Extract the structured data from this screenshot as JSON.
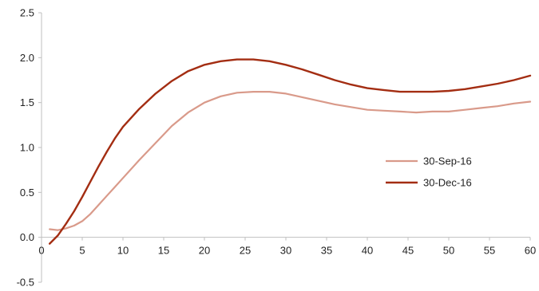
{
  "chart_data": {
    "type": "line",
    "title": "",
    "xlabel": "",
    "ylabel": "",
    "xlim": [
      0,
      60
    ],
    "ylim": [
      -0.5,
      2.5
    ],
    "x_ticks": [
      0,
      5,
      10,
      15,
      20,
      25,
      30,
      35,
      40,
      45,
      50,
      55,
      60
    ],
    "y_ticks": [
      -0.5,
      0.0,
      0.5,
      1.0,
      1.5,
      2.0,
      2.5
    ],
    "x_tick_labels": [
      "0",
      "5",
      "10",
      "15",
      "20",
      "25",
      "30",
      "35",
      "40",
      "45",
      "50",
      "55",
      "60"
    ],
    "y_tick_labels": [
      "-0.5",
      "0.0",
      "0.5",
      "1.0",
      "1.5",
      "2.0",
      "2.5"
    ],
    "grid": false,
    "legend_position": "right",
    "x": [
      1,
      2,
      3,
      4,
      5,
      6,
      7,
      8,
      9,
      10,
      12,
      14,
      16,
      18,
      20,
      22,
      24,
      26,
      28,
      30,
      32,
      34,
      36,
      38,
      40,
      42,
      44,
      46,
      48,
      50,
      52,
      54,
      56,
      58,
      60
    ],
    "series": [
      {
        "name": "30-Sep-16",
        "color": "#d99a8a",
        "values": [
          0.09,
          0.08,
          0.1,
          0.13,
          0.18,
          0.26,
          0.36,
          0.46,
          0.56,
          0.66,
          0.86,
          1.05,
          1.24,
          1.39,
          1.5,
          1.57,
          1.61,
          1.62,
          1.62,
          1.6,
          1.56,
          1.52,
          1.48,
          1.45,
          1.42,
          1.41,
          1.4,
          1.39,
          1.4,
          1.4,
          1.42,
          1.44,
          1.46,
          1.49,
          1.51
        ]
      },
      {
        "name": "30-Dec-16",
        "color": "#a32d12",
        "values": [
          -0.07,
          0.02,
          0.15,
          0.29,
          0.45,
          0.62,
          0.79,
          0.95,
          1.1,
          1.23,
          1.43,
          1.6,
          1.74,
          1.85,
          1.92,
          1.96,
          1.98,
          1.98,
          1.96,
          1.92,
          1.87,
          1.81,
          1.75,
          1.7,
          1.66,
          1.64,
          1.62,
          1.62,
          1.62,
          1.63,
          1.65,
          1.68,
          1.71,
          1.75,
          1.8
        ]
      }
    ]
  }
}
